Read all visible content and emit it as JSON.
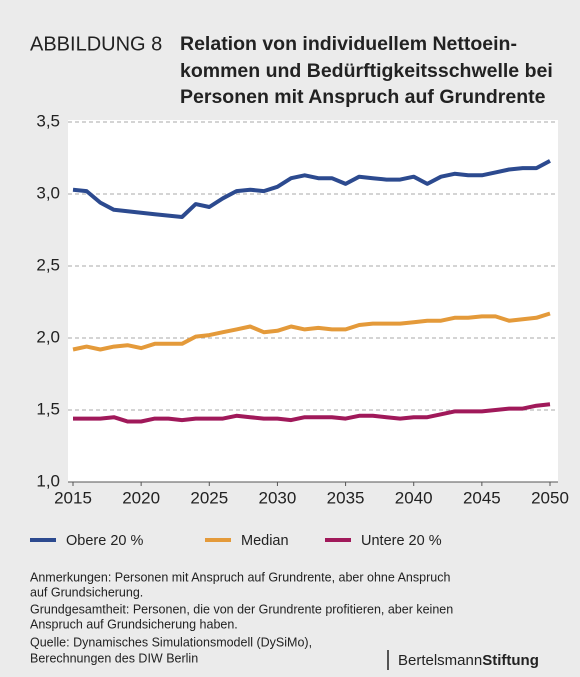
{
  "chart_data": {
    "type": "line",
    "label": "ABBILDUNG 8",
    "title": [
      "Relation von individuellem Nettoein-",
      "kommen und Bedürftigkeitsschwelle bei",
      "Personen mit Anspruch auf Grundrente"
    ],
    "x": [
      2015,
      2016,
      2017,
      2018,
      2019,
      2020,
      2021,
      2022,
      2023,
      2024,
      2025,
      2026,
      2027,
      2028,
      2029,
      2030,
      2031,
      2032,
      2033,
      2034,
      2035,
      2036,
      2037,
      2038,
      2039,
      2040,
      2041,
      2042,
      2043,
      2044,
      2045,
      2046,
      2047,
      2048,
      2049,
      2050
    ],
    "xlim": [
      2015,
      2050
    ],
    "xticks": [
      2015,
      2020,
      2025,
      2030,
      2035,
      2040,
      2045,
      2050
    ],
    "ylim": [
      1,
      3.5
    ],
    "yticks": [
      {
        "value": 1,
        "label": "1,0"
      },
      {
        "value": 1.5,
        "label": "1,5"
      },
      {
        "value": 2,
        "label": "2,0"
      },
      {
        "value": 2.5,
        "label": "2,5"
      },
      {
        "value": 3,
        "label": "3,0"
      },
      {
        "value": 3.5,
        "label": "3,5"
      }
    ],
    "grid": true,
    "series": [
      {
        "name": "Obere 20 %",
        "color": "#2c4a8f",
        "values": [
          3.03,
          3.02,
          2.94,
          2.89,
          2.88,
          2.87,
          2.86,
          2.85,
          2.84,
          2.93,
          2.91,
          2.97,
          3.02,
          3.03,
          3.02,
          3.05,
          3.11,
          3.13,
          3.11,
          3.11,
          3.07,
          3.12,
          3.11,
          3.1,
          3.1,
          3.12,
          3.07,
          3.12,
          3.14,
          3.13,
          3.13,
          3.15,
          3.17,
          3.18,
          3.18,
          3.23
        ]
      },
      {
        "name": "Median",
        "color": "#e49a3a",
        "values": [
          1.92,
          1.94,
          1.92,
          1.94,
          1.95,
          1.93,
          1.96,
          1.96,
          1.96,
          2.01,
          2.02,
          2.04,
          2.06,
          2.08,
          2.04,
          2.05,
          2.08,
          2.06,
          2.07,
          2.06,
          2.06,
          2.09,
          2.1,
          2.1,
          2.1,
          2.11,
          2.12,
          2.12,
          2.14,
          2.14,
          2.15,
          2.15,
          2.12,
          2.13,
          2.14,
          2.17
        ]
      },
      {
        "name": "Untere 20 %",
        "color": "#a0195a",
        "values": [
          1.44,
          1.44,
          1.44,
          1.45,
          1.42,
          1.42,
          1.44,
          1.44,
          1.43,
          1.44,
          1.44,
          1.44,
          1.46,
          1.45,
          1.44,
          1.44,
          1.43,
          1.45,
          1.45,
          1.45,
          1.44,
          1.46,
          1.46,
          1.45,
          1.44,
          1.45,
          1.45,
          1.47,
          1.49,
          1.49,
          1.49,
          1.5,
          1.51,
          1.51,
          1.53,
          1.54
        ]
      }
    ],
    "notes": [
      "Anmerkungen: Personen mit Anspruch auf Grundrente, aber ohne Anspruch",
      "auf Grundsicherung.",
      "Grundgesamtheit: Personen, die von der Grundrente profitieren, aber keinen",
      "Anspruch auf Grundsicherung haben.",
      "Quelle: Dynamisches Simulationsmodell (DySiMo),",
      "Berechnungen des DIW Berlin"
    ],
    "logo": {
      "first": "Bertelsmann",
      "second": "Stiftung"
    }
  }
}
